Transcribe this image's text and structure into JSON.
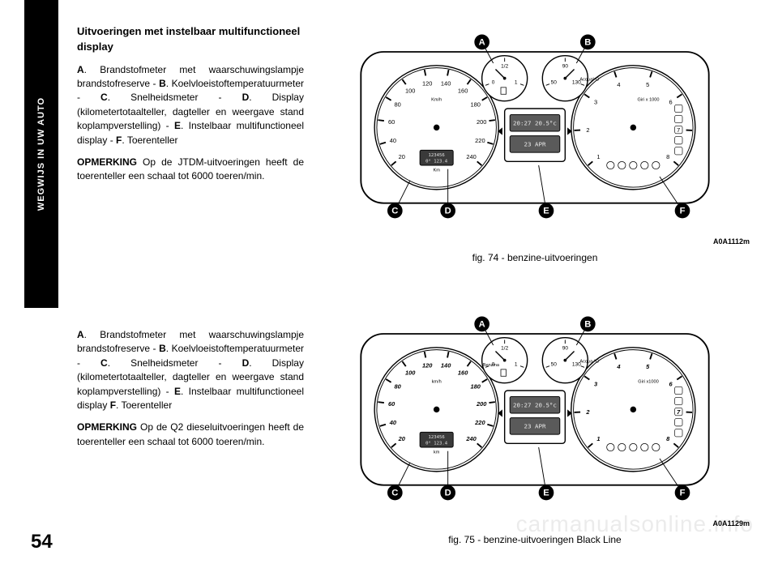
{
  "sidebar": {
    "label": "WEGWIJS IN UW AUTO"
  },
  "page_number": "54",
  "section_top": {
    "heading": "Uitvoeringen met instelbaar multifunctioneel display",
    "para1_parts": [
      {
        "b": "A"
      },
      ". Brandstofmeter met waarschuwingslampje brandstofreserve - ",
      {
        "b": "B"
      },
      ". Koelvloeistoftemperatuurmeter - ",
      {
        "b": "C"
      },
      ". Snelheidsmeter - ",
      {
        "b": "D"
      },
      ". Display (kilometertotaalteller, dagteller en weergave stand koplampverstelling) - ",
      {
        "b": "E"
      },
      ". Instelbaar multifunctioneel display - ",
      {
        "b": "F"
      },
      ". Toerenteller"
    ],
    "note_label": "OPMERKING",
    "note_text": " Op de JTDM-uitvoeringen heeft de toerenteller een schaal tot 6000 toeren/min."
  },
  "section_bottom": {
    "para1_parts": [
      {
        "b": "A"
      },
      ". Brandstofmeter met waarschuwingslampje brandstofreserve - ",
      {
        "b": "B"
      },
      ". Koelvloeistoftemperatuurmeter - ",
      {
        "b": "C"
      },
      ". Snelheidsmeter - ",
      {
        "b": "D"
      },
      ". Display (kilometertotaalteller, dagteller en weergave stand koplampverstelling) - ",
      {
        "b": "E"
      },
      ". Instelbaar multifunctioneel display ",
      {
        "b": "F"
      },
      ". Toerenteller"
    ],
    "note_label": "OPMERKING",
    "note_text": " Op de Q2 dieseluitvoeringen heeft de toerenteller een schaal tot 6000 toeren/min."
  },
  "fig_top": {
    "caption": "fig. 74 - benzine-uitvoeringen",
    "code": "A0A1112m",
    "callouts": [
      "A",
      "B",
      "C",
      "D",
      "E",
      "F"
    ],
    "speedo": {
      "unit": "Km/h",
      "numbers": [
        "20",
        "40",
        "60",
        "80",
        "100",
        "120",
        "140",
        "160",
        "180",
        "200",
        "220",
        "240"
      ]
    },
    "tacho": {
      "unit": "Giri x 1000",
      "numbers": [
        "1",
        "2",
        "3",
        "4",
        "5",
        "6",
        "7",
        "8"
      ]
    },
    "fuel": {
      "marks": [
        "0",
        "1/2",
        "1"
      ]
    },
    "temp": {
      "marks": [
        "50",
        "90",
        "130"
      ],
      "unit": "Acqua° C"
    },
    "lcd": {
      "line1": "20:27   20.5°c",
      "line2": "23 APR"
    },
    "odo": {
      "line1": "123456",
      "line2": "0° 123.4",
      "unit": "Km"
    },
    "font_style": "normal"
  },
  "fig_bottom": {
    "caption": "fig. 75 - benzine-uitvoeringen Black Line",
    "code": "A0A1129m",
    "callouts": [
      "A",
      "B",
      "C",
      "D",
      "E",
      "F"
    ],
    "speedo": {
      "unit": "km/h",
      "numbers": [
        "20",
        "40",
        "60",
        "80",
        "100",
        "120",
        "140",
        "160",
        "180",
        "200",
        "220",
        "240"
      ]
    },
    "tacho": {
      "unit": "Giri x1000",
      "numbers": [
        "1",
        "2",
        "3",
        "4",
        "5",
        "6",
        "7",
        "8"
      ]
    },
    "fuel": {
      "marks": [
        "0",
        "1/2",
        "1"
      ],
      "label": "Benzina"
    },
    "temp": {
      "marks": [
        "50",
        "90",
        "130"
      ],
      "unit": "Acqua °C"
    },
    "lcd": {
      "line1": "20:27   20.5°c",
      "line2": "23 APR"
    },
    "odo": {
      "line1": "123456",
      "line2": "0° 123.4",
      "unit": "km"
    },
    "font_style": "italic"
  },
  "watermark": "carmanualsonline.info"
}
